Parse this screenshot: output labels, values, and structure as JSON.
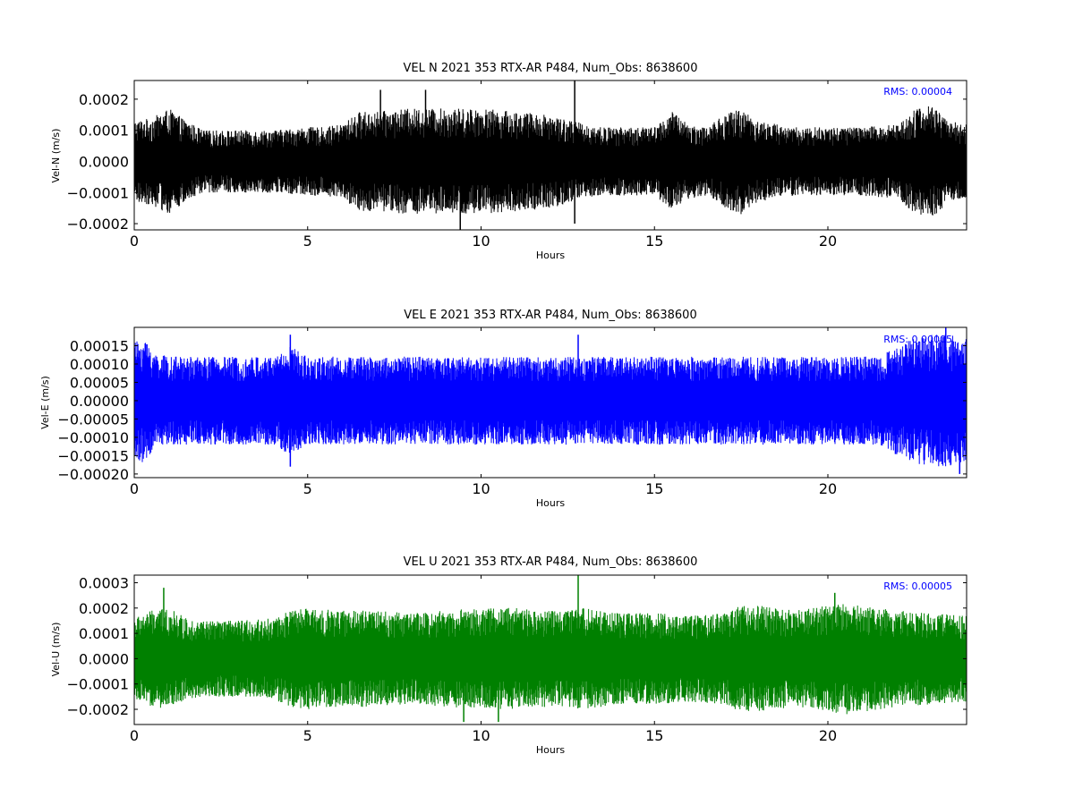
{
  "chart_data": [
    {
      "type": "line",
      "title": "VEL N 2021 353 RTX-AR  P484, Num_Obs: 8638600",
      "xlabel": "Hours",
      "ylabel": "Vel-N (m/s)",
      "xlim": [
        0,
        24
      ],
      "ylim": [
        -0.00022,
        0.00026
      ],
      "xticks": [
        0,
        5,
        10,
        15,
        20
      ],
      "xtick_labels": [
        "0",
        "5",
        "10",
        "15",
        "20"
      ],
      "yticks": [
        -0.0002,
        -0.0001,
        0.0,
        0.0001,
        0.0002
      ],
      "ytick_labels": [
        "−0.0002",
        "−0.0001",
        "0.0000",
        "0.0001",
        "0.0002"
      ],
      "annotation": "RMS:  0.00004",
      "annotation_color": "#0000ff",
      "color": "#000000",
      "grid": false,
      "envelope": {
        "x": [
          0,
          0.5,
          1,
          1.5,
          2,
          3,
          4,
          5,
          5.5,
          6,
          6.5,
          7,
          8,
          9,
          10,
          11,
          12,
          13,
          13.5,
          14,
          15,
          15.5,
          16,
          16.5,
          17,
          17.5,
          18,
          19,
          20,
          21,
          22,
          22.5,
          23,
          23.5,
          24
        ],
        "amplitude": [
          0.00013,
          0.00014,
          0.00017,
          0.00013,
          0.0001,
          0.0001,
          0.0001,
          0.00011,
          0.00011,
          0.00012,
          0.00016,
          0.00016,
          0.00017,
          0.00017,
          0.00017,
          0.00016,
          0.00015,
          0.00012,
          0.00011,
          0.00011,
          0.00011,
          0.00016,
          0.00012,
          0.00011,
          0.00015,
          0.00017,
          0.00013,
          0.00011,
          0.00011,
          0.00011,
          0.00012,
          0.00017,
          0.00018,
          0.00013,
          0.00012
        ]
      },
      "spikes": [
        {
          "x": 12.7,
          "y": 0.00026
        },
        {
          "x": 12.7,
          "y": -0.0002
        },
        {
          "x": 7.1,
          "y": 0.00023
        },
        {
          "x": 8.4,
          "y": 0.00023
        },
        {
          "x": 9.4,
          "y": -0.00022
        }
      ]
    },
    {
      "type": "line",
      "title": "VEL E 2021 353 RTX-AR  P484, Num_Obs: 8638600",
      "xlabel": "Hours",
      "ylabel": "Vel-E (m/s)",
      "xlim": [
        0,
        24
      ],
      "ylim": [
        -0.00021,
        0.0002
      ],
      "xticks": [
        0,
        5,
        10,
        15,
        20
      ],
      "xtick_labels": [
        "0",
        "5",
        "10",
        "15",
        "20"
      ],
      "yticks": [
        -0.0002,
        -0.00015,
        -0.0001,
        -5e-05,
        0.0,
        5e-05,
        0.0001,
        0.00015
      ],
      "ytick_labels": [
        "−0.00020",
        "−0.00015",
        "−0.00010",
        "−0.00005",
        "0.00000",
        "0.00005",
        "0.00010",
        "0.00015"
      ],
      "annotation": "RMS:  0.00005",
      "annotation_color": "#0000ff",
      "color": "#0000ff",
      "grid": false,
      "envelope": {
        "x": [
          0,
          0.3,
          0.6,
          1,
          2,
          3,
          4,
          4.5,
          5,
          6,
          7,
          8,
          9,
          10,
          11,
          12,
          13,
          14,
          15,
          16,
          17,
          18,
          19,
          20,
          21,
          21.5,
          22,
          22.5,
          23,
          23.5,
          24
        ],
        "amplitude": [
          0.00016,
          0.00017,
          0.00013,
          0.00012,
          0.00012,
          0.00012,
          0.00012,
          0.00015,
          0.00012,
          0.00012,
          0.00012,
          0.00012,
          0.00012,
          0.00012,
          0.00012,
          0.00012,
          0.00012,
          0.00012,
          0.00012,
          0.00012,
          0.00012,
          0.00012,
          0.00012,
          0.00012,
          0.00012,
          0.00012,
          0.00015,
          0.00017,
          0.00018,
          0.00018,
          0.00017
        ]
      },
      "spikes": [
        {
          "x": 4.5,
          "y": 0.00018
        },
        {
          "x": 12.8,
          "y": 0.00018
        },
        {
          "x": 4.5,
          "y": -0.00018
        },
        {
          "x": 23.4,
          "y": 0.0002
        },
        {
          "x": 23.8,
          "y": -0.0002
        }
      ]
    },
    {
      "type": "line",
      "title": "VEL U 2021 353 RTX-AR  P484, Num_Obs: 8638600",
      "xlabel": "Hours",
      "ylabel": "Vel-U (m/s)",
      "xlim": [
        0,
        24
      ],
      "ylim": [
        -0.00026,
        0.00033
      ],
      "xticks": [
        0,
        5,
        10,
        15,
        20
      ],
      "xtick_labels": [
        "0",
        "5",
        "10",
        "15",
        "20"
      ],
      "yticks": [
        -0.0002,
        -0.0001,
        0.0,
        0.0001,
        0.0002,
        0.0003
      ],
      "ytick_labels": [
        "−0.0002",
        "−0.0001",
        "0.0000",
        "0.0001",
        "0.0002",
        "0.0003"
      ],
      "annotation": "RMS:  0.00005",
      "annotation_color": "#0000ff",
      "color": "#008000",
      "grid": false,
      "envelope": {
        "x": [
          0,
          0.5,
          1,
          1.5,
          2,
          3,
          4,
          4.5,
          5,
          6,
          7,
          8,
          9,
          10,
          11,
          12,
          13,
          14,
          15,
          16,
          17,
          17.5,
          18,
          19,
          20,
          20.5,
          21,
          22,
          23,
          24
        ],
        "amplitude": [
          0.00016,
          0.00019,
          0.0002,
          0.00016,
          0.00015,
          0.00015,
          0.00016,
          0.00019,
          0.0002,
          0.00019,
          0.00019,
          0.00018,
          0.00019,
          0.0002,
          0.0002,
          0.00019,
          0.0002,
          0.00018,
          0.00018,
          0.00017,
          0.00018,
          0.00021,
          0.00021,
          0.00019,
          0.00021,
          0.00022,
          0.00021,
          0.00019,
          0.00018,
          0.00017
        ]
      },
      "spikes": [
        {
          "x": 0.85,
          "y": 0.00028
        },
        {
          "x": 12.8,
          "y": 0.00033
        },
        {
          "x": 9.5,
          "y": -0.00025
        },
        {
          "x": 10.5,
          "y": -0.00025
        },
        {
          "x": 20.2,
          "y": 0.00026
        }
      ]
    }
  ]
}
